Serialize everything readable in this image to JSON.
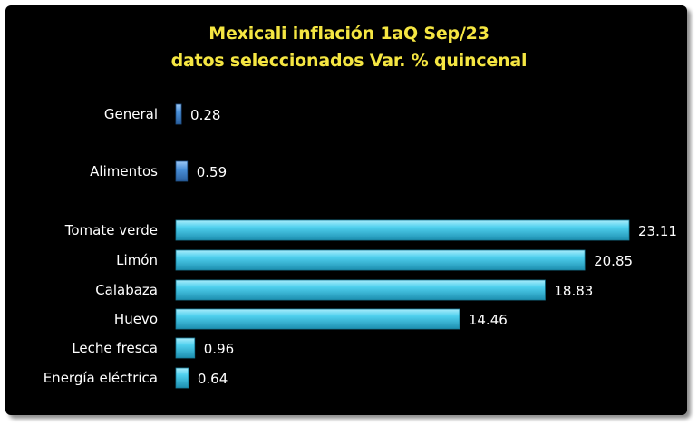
{
  "chart_data": {
    "type": "bar",
    "orientation": "horizontal",
    "title": "Mexicali inflación 1aQ Sep/23",
    "subtitle": "datos seleccionados Var. % quincenal",
    "categories": [
      "General",
      "Alimentos",
      "Tomate verde",
      "Limón",
      "Calabaza",
      "Huevo",
      "Leche fresca",
      "Energía eléctrica"
    ],
    "values": [
      0.28,
      0.59,
      23.11,
      20.85,
      18.83,
      14.46,
      0.96,
      0.64
    ],
    "value_labels": [
      "0.28",
      "0.59",
      "23.11",
      "20.85",
      "18.83",
      "14.46",
      "0.96",
      "0.64"
    ],
    "xlim": [
      0,
      23.11
    ],
    "grid": false,
    "legend": "none",
    "colors": {
      "background": "#000000",
      "title": "#f5e642",
      "bar": "#3fc6e3",
      "bar_aggregate": "#4a90d9",
      "text": "#ffffff"
    }
  }
}
